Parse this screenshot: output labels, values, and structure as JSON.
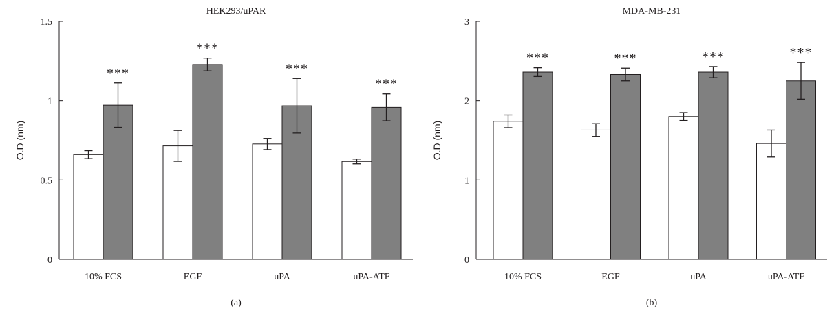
{
  "colors": {
    "control": "#ffffff",
    "treated": "#808080",
    "ink": "#231f20"
  },
  "chart_data": [
    {
      "type": "bar",
      "title": "HEK293/uPAR",
      "panel_label": "(a)",
      "xlabel": "",
      "ylabel": "O.D (nm)",
      "ylim": [
        0,
        1.5
      ],
      "yticks": [
        0,
        0.5,
        1,
        1.5
      ],
      "ytick_labels": [
        "0",
        "0.5",
        "1",
        "1.5"
      ],
      "categories": [
        "10% FCS",
        "EGF",
        "uPA",
        "uPA-ATF"
      ],
      "series": [
        {
          "values": [
            0.66,
            0.715,
            0.727,
            0.617
          ],
          "errors": [
            0.025,
            0.097,
            0.035,
            0.015
          ],
          "annotations": [
            "",
            "",
            "",
            ""
          ]
        },
        {
          "values": [
            0.972,
            1.228,
            0.968,
            0.958
          ],
          "errors": [
            0.14,
            0.04,
            0.172,
            0.085
          ],
          "annotations": [
            "***",
            "***",
            "***",
            "***"
          ]
        }
      ]
    },
    {
      "type": "bar",
      "title": "MDA-MB-231",
      "panel_label": "(b)",
      "xlabel": "",
      "ylabel": "O.D (nm)",
      "ylim": [
        0,
        3
      ],
      "yticks": [
        0,
        1,
        2,
        3
      ],
      "ytick_labels": [
        "0",
        "1",
        "2",
        "3"
      ],
      "categories": [
        "10% FCS",
        "EGF",
        "uPA",
        "uPA-ATF"
      ],
      "series": [
        {
          "values": [
            1.74,
            1.63,
            1.8,
            1.46
          ],
          "errors": [
            0.08,
            0.08,
            0.05,
            0.17
          ],
          "annotations": [
            "",
            "",
            "",
            ""
          ]
        },
        {
          "values": [
            2.36,
            2.33,
            2.36,
            2.25
          ],
          "errors": [
            0.055,
            0.08,
            0.07,
            0.23
          ],
          "annotations": [
            "***",
            "***",
            "***",
            "***"
          ]
        }
      ]
    }
  ]
}
